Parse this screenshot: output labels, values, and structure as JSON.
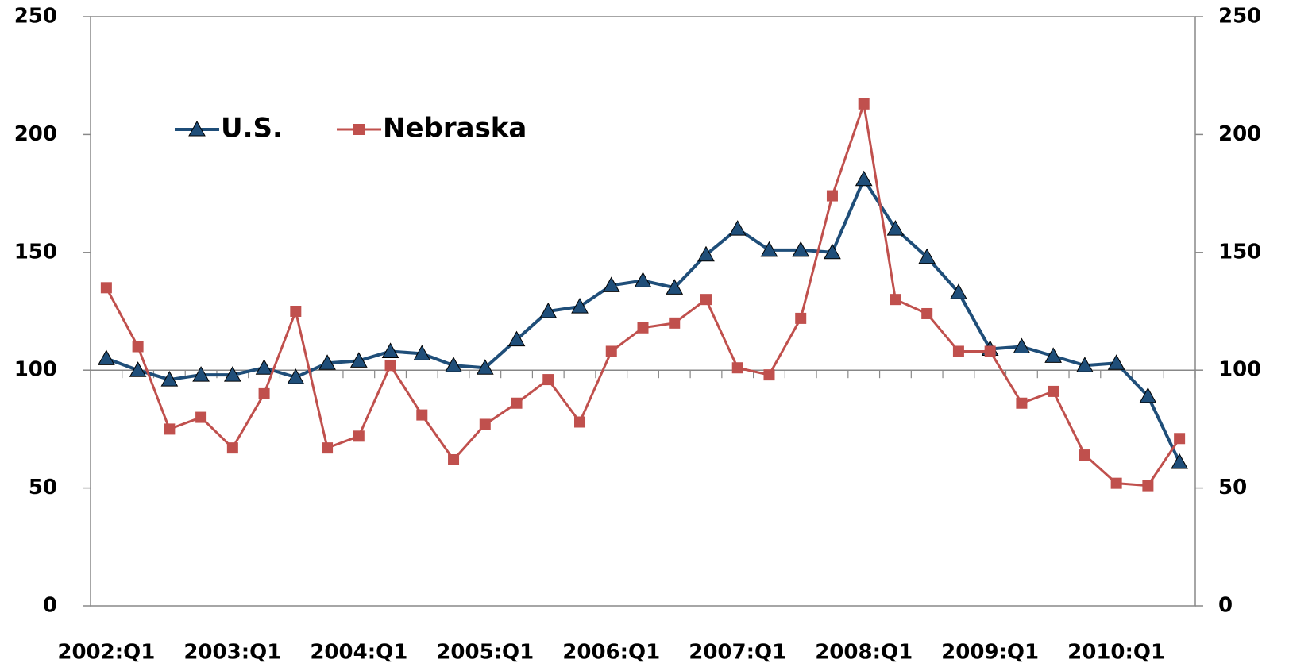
{
  "chart_data": {
    "type": "line",
    "categories": [
      "2002:Q1",
      null,
      null,
      null,
      "2003:Q1",
      null,
      null,
      null,
      "2004:Q1",
      null,
      null,
      null,
      "2005:Q1",
      null,
      null,
      null,
      "2006:Q1",
      null,
      null,
      null,
      "2007:Q1",
      null,
      null,
      null,
      "2008:Q1",
      null,
      null,
      null,
      "2009:Q1",
      null,
      null,
      null,
      "2010:Q1",
      null,
      null
    ],
    "series": [
      {
        "name": "U.S.",
        "color": "#1f4e79",
        "marker": "triangle",
        "values": [
          105,
          100,
          96,
          98,
          98,
          101,
          97,
          103,
          104,
          108,
          107,
          102,
          101,
          113,
          125,
          127,
          136,
          138,
          135,
          149,
          160,
          151,
          151,
          150,
          181,
          160,
          148,
          133,
          109,
          110,
          106,
          102,
          103,
          89,
          61
        ]
      },
      {
        "name": "Nebraska",
        "color": "#c0504d",
        "marker": "square",
        "values": [
          135,
          110,
          75,
          80,
          67,
          90,
          125,
          67,
          72,
          102,
          81,
          62,
          77,
          86,
          96,
          78,
          108,
          118,
          120,
          130,
          101,
          98,
          122,
          174,
          213,
          130,
          124,
          108,
          108,
          86,
          91,
          64,
          52,
          51,
          71
        ]
      }
    ],
    "ylim": [
      0,
      250
    ],
    "yticks": [
      0,
      50,
      100,
      150,
      200,
      250
    ],
    "y2lim": [
      0,
      250
    ],
    "y2ticks": [
      0,
      50,
      100,
      150,
      200,
      250
    ],
    "x_axis_crosses_at": 100,
    "grid": false,
    "legend": "upper left"
  }
}
